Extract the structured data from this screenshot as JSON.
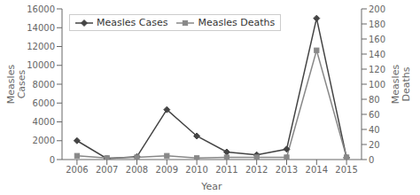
{
  "chart_data": {
    "type": "line",
    "xlabel": "Year",
    "ylabel": "Measles\nCases",
    "y2label": "Measles\nDeaths",
    "x": [
      2006,
      2007,
      2008,
      2009,
      2010,
      2011,
      2012,
      2013,
      2014,
      2015
    ],
    "xlim": [
      2005.5,
      2015.5
    ],
    "xticks": [
      2006,
      2007,
      2008,
      2009,
      2010,
      2011,
      2012,
      2013,
      2014,
      2015
    ],
    "ylim": [
      0,
      16000
    ],
    "yticks": [
      0,
      2000,
      4000,
      6000,
      8000,
      10000,
      12000,
      14000,
      16000
    ],
    "y2lim": [
      0,
      200
    ],
    "y2ticks": [
      0,
      20,
      40,
      60,
      80,
      100,
      120,
      140,
      160,
      180,
      200
    ],
    "grid": false,
    "legend": "upper left",
    "series": [
      {
        "name": "Measles Cases",
        "color": "#444444",
        "marker": "diamond",
        "values": [
          2000,
          100,
          300,
          5300,
          2500,
          800,
          500,
          1100,
          15000,
          200
        ]
      },
      {
        "name": "Measles Deaths",
        "color": "#888888",
        "marker": "square",
        "axis": "y2",
        "values": [
          5,
          2,
          3,
          5,
          2,
          3,
          3,
          3,
          145,
          3
        ]
      }
    ]
  }
}
